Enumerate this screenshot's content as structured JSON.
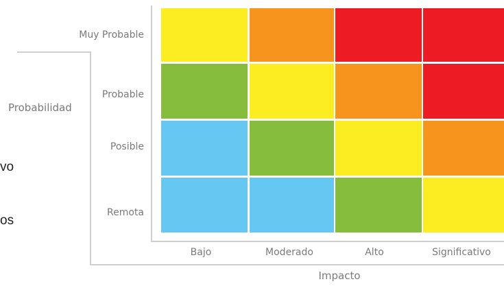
{
  "side_text": [
    "vo",
    "os"
  ],
  "chart_data": {
    "type": "heatmap",
    "title": "",
    "xlabel": "Impacto",
    "ylabel": "Probabilidad",
    "x_categories": [
      "Bajo",
      "Moderado",
      "Alto",
      "Significativo"
    ],
    "y_categories": [
      "Muy Probable",
      "Probable",
      "Posible",
      "Remota"
    ],
    "levels": {
      "1": "#66c8f2",
      "2": "#86bd3c",
      "3": "#fbed21",
      "4": "#f7941d",
      "5": "#ed1c24"
    },
    "grid": [
      [
        3,
        4,
        5,
        5
      ],
      [
        2,
        3,
        4,
        5
      ],
      [
        1,
        2,
        3,
        4
      ],
      [
        1,
        1,
        2,
        3
      ]
    ],
    "grid_lines": false,
    "legend": "none"
  }
}
